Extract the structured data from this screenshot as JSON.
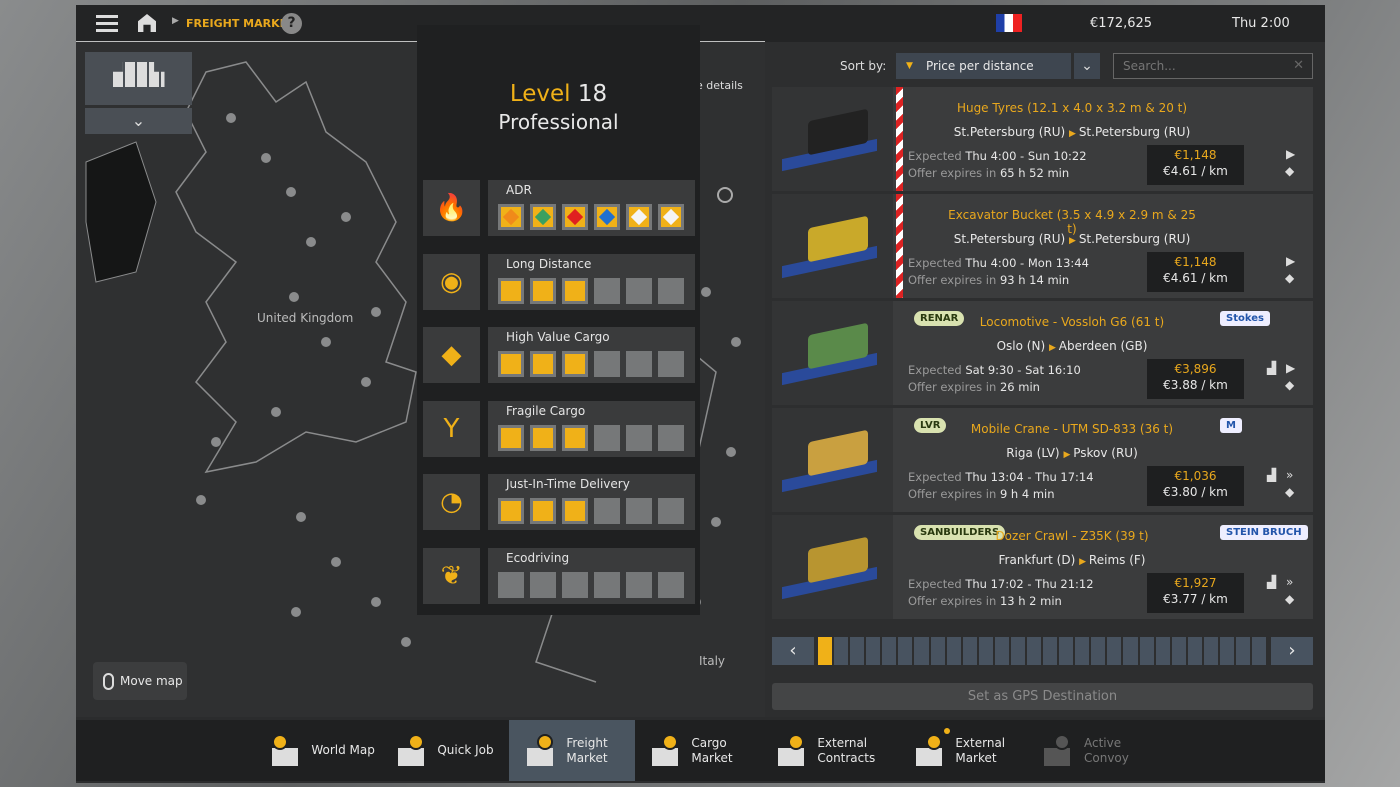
{
  "header": {
    "breadcrumb": "FREIGHT MARKET",
    "money": "€172,625",
    "time": "Thu 2:00"
  },
  "map": {
    "country_label": "United Kingdom",
    "italy_label": "Italy",
    "move_map": "Move map",
    "details_label": "e details"
  },
  "skills": {
    "level_word": "Level",
    "level": "18",
    "rank": "Professional",
    "rows": [
      {
        "label": "ADR",
        "icon": "fire-icon",
        "filled": 6,
        "total": 6,
        "adr": true
      },
      {
        "label": "Long Distance",
        "icon": "location-pin-icon",
        "filled": 3,
        "total": 6
      },
      {
        "label": "High Value Cargo",
        "icon": "diamond-icon",
        "filled": 3,
        "total": 6
      },
      {
        "label": "Fragile Cargo",
        "icon": "glass-icon",
        "filled": 3,
        "total": 6
      },
      {
        "label": "Just-In-Time Delivery",
        "icon": "clock-icon",
        "filled": 3,
        "total": 6
      },
      {
        "label": "Ecodriving",
        "icon": "leaf-icon",
        "filled": 0,
        "total": 6
      }
    ]
  },
  "sort": {
    "label": "Sort by:",
    "value": "Price per distance",
    "search_placeholder": "Search..."
  },
  "jobs": [
    {
      "title": "Huge Tyres (12.1 x 4.0 x 3.2 m & 20 t)",
      "from": "St.Petersburg (RU)",
      "to": "St.Petersburg (RU)",
      "expected_label": "Expected",
      "expected": "Thu 4:00 - Sun 10:22",
      "expires_label": "Offer expires in",
      "expires": "65 h 52 min",
      "price": "€1,148",
      "per_km": "€4.61 / km",
      "special": true,
      "cargo_color": "#222"
    },
    {
      "title": "Excavator Bucket (3.5 x 4.9 x 2.9 m & 25 t)",
      "from": "St.Petersburg (RU)",
      "to": "St.Petersburg (RU)",
      "expected_label": "Expected",
      "expected": "Thu 4:00 - Mon 13:44",
      "expires_label": "Offer expires in",
      "expires": "93 h 14 min",
      "price": "€1,148",
      "per_km": "€4.61 / km",
      "special": true,
      "cargo_color": "#c9a92a"
    },
    {
      "title": "Locomotive - Vossloh G6 (61 t)",
      "from": "Oslo (N)",
      "to": "Aberdeen (GB)",
      "expected_label": "Expected",
      "expected": "Sat 9:30 - Sat 16:10",
      "expires_label": "Offer expires in",
      "expires": "26 min",
      "price": "€3,896",
      "per_km": "€3.88 / km",
      "logo_left": "RENAR",
      "logo_right": "Stokes",
      "cargo_color": "#5a8a4a"
    },
    {
      "title": "Mobile Crane - UTM SD-833 (36 t)",
      "from": "Riga (LV)",
      "to": "Pskov (RU)",
      "expected_label": "Expected",
      "expected": "Thu 13:04 - Thu 17:14",
      "expires_label": "Offer expires in",
      "expires": "9 h 4 min",
      "price": "€1,036",
      "per_km": "€3.80 / km",
      "logo_left": "LVR",
      "logo_right": "M",
      "cargo_color": "#c9a040"
    },
    {
      "title": "Dozer Crawl - Z35K (39 t)",
      "from": "Frankfurt (D)",
      "to": "Reims (F)",
      "expected_label": "Expected",
      "expected": "Thu 17:02 - Thu 21:12",
      "expires_label": "Offer expires in",
      "expires": "13 h 2 min",
      "price": "€1,927",
      "per_km": "€3.77 / km",
      "logo_left": "SANBUILDERS",
      "logo_right": "STEIN BRUCH",
      "cargo_color": "#b89530"
    }
  ],
  "pager": {
    "pages": 28,
    "current": 1
  },
  "gps_button": "Set as GPS Destination",
  "nav": [
    {
      "label": "World Map",
      "icon": "world-map-icon"
    },
    {
      "label": "Quick Job",
      "icon": "quick-job-icon"
    },
    {
      "label": "Freight Market",
      "icon": "freight-market-icon",
      "active": true
    },
    {
      "label": "Cargo Market",
      "icon": "cargo-market-icon"
    },
    {
      "label": "External Contracts",
      "icon": "external-contracts-icon"
    },
    {
      "label": "External Market",
      "icon": "external-market-icon",
      "dot": true
    },
    {
      "label": "Active Convoy",
      "icon": "convoy-icon",
      "disabled": true
    }
  ],
  "colors": {
    "accent": "#f0b118",
    "panel": "#3b3c3d",
    "dark": "#1f2021"
  }
}
